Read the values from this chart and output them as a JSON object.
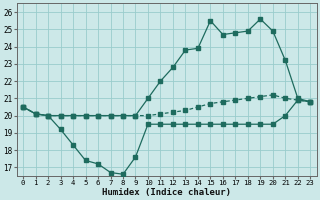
{
  "xlabel": "Humidex (Indice chaleur)",
  "bg_color": "#cce8e8",
  "line_color": "#1e6b5e",
  "grid_color": "#99cccc",
  "ylim": [
    16.5,
    26.5
  ],
  "xlim": [
    -0.5,
    23.5
  ],
  "yticks": [
    17,
    18,
    19,
    20,
    21,
    22,
    23,
    24,
    25,
    26
  ],
  "xticks": [
    0,
    1,
    2,
    3,
    4,
    5,
    6,
    7,
    8,
    9,
    10,
    11,
    12,
    13,
    14,
    15,
    16,
    17,
    18,
    19,
    20,
    21,
    22,
    23
  ],
  "series1_x": [
    0,
    1,
    2,
    3,
    4,
    5,
    6,
    7,
    8,
    9,
    10,
    11,
    12,
    13,
    14,
    15,
    16,
    17,
    18,
    19,
    20,
    21,
    22,
    23
  ],
  "series1_y": [
    20.5,
    20.1,
    20.0,
    19.2,
    18.3,
    17.4,
    17.2,
    16.7,
    16.6,
    17.6,
    19.5,
    19.5,
    19.5,
    19.5,
    19.5,
    19.5,
    19.5,
    19.5,
    19.5,
    19.5,
    19.5,
    20.0,
    20.9,
    20.8
  ],
  "series2_x": [
    0,
    1,
    2,
    3,
    4,
    5,
    6,
    7,
    8,
    9,
    10,
    11,
    12,
    13,
    14,
    15,
    16,
    17,
    18,
    19,
    20,
    21,
    22,
    23
  ],
  "series2_y": [
    20.5,
    20.1,
    20.0,
    20.0,
    20.0,
    20.0,
    20.0,
    20.0,
    20.0,
    20.0,
    20.0,
    20.1,
    20.2,
    20.3,
    20.5,
    20.7,
    20.8,
    20.9,
    21.0,
    21.1,
    21.2,
    21.0,
    20.9,
    20.8
  ],
  "series3_x": [
    0,
    1,
    2,
    3,
    4,
    5,
    6,
    7,
    8,
    9,
    10,
    11,
    12,
    13,
    14,
    15,
    16,
    17,
    18,
    19,
    20,
    21,
    22,
    23
  ],
  "series3_y": [
    20.5,
    20.1,
    20.0,
    20.0,
    20.0,
    20.0,
    20.0,
    20.0,
    20.0,
    20.0,
    21.0,
    22.0,
    22.8,
    23.8,
    23.9,
    25.5,
    24.7,
    24.8,
    24.9,
    25.6,
    24.9,
    23.2,
    21.0,
    20.8
  ]
}
